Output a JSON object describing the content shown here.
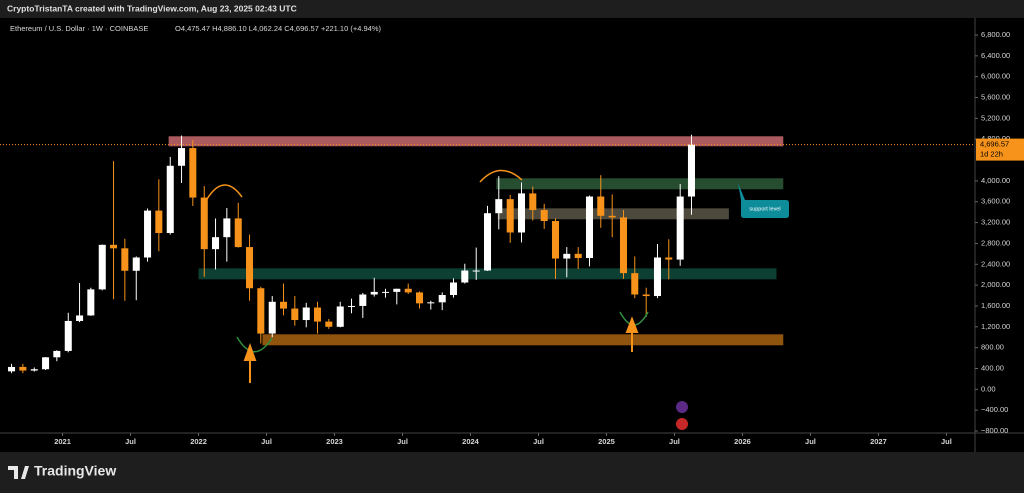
{
  "header": {
    "credit": "CryptoTristanTA created with TradingView.com, Aug 23, 2025 02:43 UTC"
  },
  "chart_data": {
    "type": "candlestick",
    "symbol": "Ethereum / U.S. Dollar · 1W · COINBASE",
    "ohlc_text": "O4,475.47 H4,886.10 L4,062.24 C4,696.57 +221.10 (+4.94%)",
    "up_color": "#ffffff",
    "down_color": "#f7931a",
    "x": [
      2020.625,
      2020.708,
      2020.792,
      2020.875,
      2020.958,
      2021.042,
      2021.125,
      2021.208,
      2021.292,
      2021.375,
      2021.458,
      2021.542,
      2021.625,
      2021.708,
      2021.792,
      2021.875,
      2021.958,
      2022.042,
      2022.125,
      2022.208,
      2022.292,
      2022.375,
      2022.458,
      2022.542,
      2022.625,
      2022.708,
      2022.792,
      2022.875,
      2022.958,
      2023.042,
      2023.125,
      2023.208,
      2023.292,
      2023.375,
      2023.458,
      2023.542,
      2023.625,
      2023.708,
      2023.792,
      2023.875,
      2023.958,
      2024.042,
      2024.125,
      2024.208,
      2024.292,
      2024.375,
      2024.458,
      2024.542,
      2024.625,
      2024.708,
      2024.792,
      2024.875,
      2024.958,
      2025.042,
      2025.125,
      2025.208,
      2025.292,
      2025.375,
      2025.458,
      2025.542,
      2025.625
    ],
    "open": [
      345,
      430,
      360,
      386,
      615,
      737,
      1312,
      1418,
      1918,
      2773,
      2706,
      2275,
      2530,
      3430,
      3000,
      4290,
      4630,
      3680,
      2690,
      2920,
      3280,
      2730,
      1940,
      1070,
      1680,
      1550,
      1330,
      1570,
      1300,
      1200,
      1590,
      1600,
      1820,
      1870,
      1870,
      1930,
      1860,
      1650,
      1670,
      1810,
      2050,
      2280,
      2280,
      3380,
      3650,
      3010,
      3760,
      3440,
      3230,
      2510,
      2600,
      2520,
      3700,
      3330,
      3300,
      2230,
      1820,
      1790,
      2530,
      2490,
      3700
    ],
    "high": [
      490,
      490,
      420,
      620,
      750,
      1470,
      2040,
      1950,
      2780,
      4380,
      2890,
      2550,
      3470,
      4030,
      4460,
      4870,
      4780,
      3900,
      3280,
      3480,
      3580,
      2970,
      1970,
      1790,
      2030,
      1790,
      1660,
      1680,
      1350,
      1680,
      1740,
      1850,
      2140,
      1930,
      1930,
      2030,
      1880,
      1700,
      1860,
      2130,
      2410,
      2720,
      3520,
      4090,
      3730,
      3970,
      3890,
      3560,
      3280,
      2730,
      2730,
      3720,
      4110,
      3740,
      3440,
      2550,
      1950,
      2790,
      2880,
      3940,
      4886
    ],
    "low": [
      310,
      310,
      340,
      370,
      540,
      710,
      1290,
      1410,
      1900,
      1730,
      1700,
      1710,
      2450,
      2650,
      2970,
      3960,
      3520,
      2160,
      2300,
      2450,
      2720,
      1700,
      880,
      1000,
      1420,
      1220,
      1190,
      1070,
      1160,
      1190,
      1460,
      1370,
      1780,
      1760,
      1630,
      1830,
      1550,
      1530,
      1520,
      1760,
      2030,
      2100,
      2270,
      3070,
      2810,
      2820,
      3240,
      3080,
      2120,
      2150,
      2310,
      2360,
      3100,
      2920,
      2120,
      1750,
      1390,
      1750,
      2110,
      2370,
      3350
    ],
    "close": [
      430,
      360,
      386,
      615,
      737,
      1312,
      1418,
      1918,
      2773,
      2706,
      2275,
      2530,
      3430,
      3000,
      4290,
      4630,
      3680,
      2690,
      2920,
      3280,
      2730,
      1940,
      1070,
      1680,
      1550,
      1330,
      1570,
      1300,
      1200,
      1590,
      1600,
      1820,
      1870,
      1870,
      1930,
      1860,
      1650,
      1670,
      1810,
      2050,
      2280,
      2280,
      3380,
      3650,
      3010,
      3760,
      3440,
      3230,
      2510,
      2600,
      2520,
      3700,
      3330,
      3300,
      2230,
      1820,
      1790,
      2530,
      2490,
      3700,
      4697
    ],
    "xlim": [
      2020.54,
      2027.71
    ],
    "ylim": [
      -838,
      7126
    ],
    "xticks": [
      2021,
      {
        "value": 2021.5,
        "label": "Jul"
      },
      2022,
      {
        "value": 2022.5,
        "label": "Jul"
      },
      2023,
      {
        "value": 2023.5,
        "label": "Jul"
      },
      2024,
      {
        "value": 2024.5,
        "label": "Jul"
      },
      2025,
      {
        "value": 2025.5,
        "label": "Jul"
      },
      2026,
      {
        "value": 2026.5,
        "label": "Jul"
      },
      2027,
      {
        "value": 2027.5,
        "label": "Jul"
      }
    ],
    "yticks": [
      {
        "value": -800,
        "label": "−800.00"
      },
      {
        "value": -400,
        "label": "−400.00"
      },
      {
        "value": 0,
        "label": "0.00"
      },
      {
        "value": 400,
        "label": "400.00"
      },
      {
        "value": 800,
        "label": "800.00"
      },
      {
        "value": 1200,
        "label": "1,200.00"
      },
      {
        "value": 1600,
        "label": "1,600.00"
      },
      {
        "value": 2000,
        "label": "2,000.00"
      },
      {
        "value": 2400,
        "label": "2,400.00"
      },
      {
        "value": 2800,
        "label": "2,800.00"
      },
      {
        "value": 3200,
        "label": "3,200.00"
      },
      {
        "value": 3600,
        "label": "3,600.00"
      },
      {
        "value": 4000,
        "label": "4,000.00"
      },
      {
        "value": 4800,
        "label": "4,800.00"
      },
      {
        "value": 5200,
        "label": "5,200.00"
      },
      {
        "value": 5600,
        "label": "5,600.00"
      },
      {
        "value": 6000,
        "label": "6,000.00"
      },
      {
        "value": 6400,
        "label": "6,400.00"
      },
      {
        "value": 6800,
        "label": "6,800.00"
      }
    ],
    "last_price": {
      "value": 4696.57,
      "label": "4,696.57"
    },
    "countdown": "1d 22h",
    "zones": [
      {
        "x": [
          2021.78,
          2026.3
        ],
        "y": [
          4664,
          4856
        ],
        "color": "#c96a6e"
      },
      {
        "x": [
          2024.19,
          2026.3
        ],
        "y": [
          3839,
          4050
        ],
        "color": "#2e5a3a"
      },
      {
        "x": [
          2024.2,
          2025.9
        ],
        "y": [
          3263,
          3474
        ],
        "color": "#5a5648"
      },
      {
        "x": [
          2022.0,
          2026.25
        ],
        "y": [
          2111,
          2322
        ],
        "color": "#0f4a3c"
      },
      {
        "x": [
          2022.47,
          2026.3
        ],
        "y": [
          845,
          1056
        ],
        "color": "#a8630f"
      }
    ],
    "annotation": "support level"
  },
  "footer": {
    "brand": "TradingView"
  }
}
